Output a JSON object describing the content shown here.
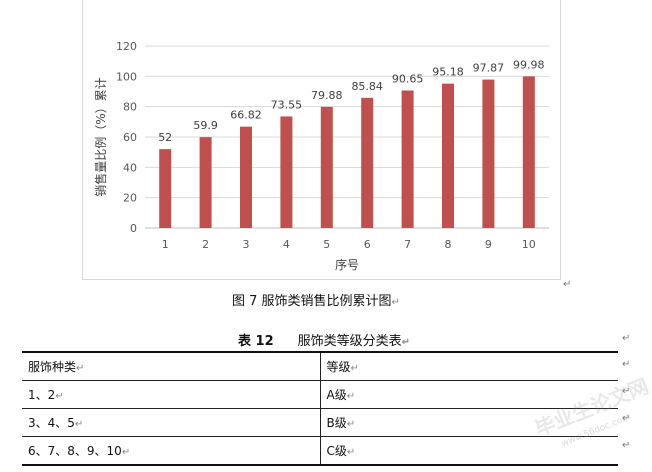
{
  "figure": {
    "caption": "图 7   服饰类销售比例累计图",
    "chart_data": {
      "type": "bar",
      "categories": [
        "1",
        "2",
        "3",
        "4",
        "5",
        "6",
        "7",
        "8",
        "9",
        "10"
      ],
      "values": [
        52,
        59.9,
        66.82,
        73.55,
        79.88,
        85.84,
        90.65,
        95.18,
        97.87,
        99.98
      ],
      "data_labels": [
        "52",
        "59.9",
        "66.82",
        "73.55",
        "79.88",
        "85.84",
        "90.65",
        "95.18",
        "97.87",
        "99.98"
      ],
      "xlabel": "序号",
      "ylabel": "销售量比例（%）累计",
      "ylim": [
        0,
        120
      ],
      "yticks": [
        "0",
        "20",
        "40",
        "60",
        "80",
        "100",
        "120"
      ],
      "grid": true,
      "bar_color": "#c0504d",
      "grid_color": "#d9d9d9"
    }
  },
  "table": {
    "number": "表 12",
    "name": "服饰类等级分类表",
    "rows": [
      [
        "服饰种类",
        "等级"
      ],
      [
        "1、2",
        "A级"
      ],
      [
        "3、4、5",
        "B级"
      ],
      [
        "6、7、8、9、10",
        "C级"
      ]
    ]
  },
  "paragraph_mark": "↵",
  "watermark": "毕业生论文网",
  "watermark_sub": "www.56doc.com"
}
